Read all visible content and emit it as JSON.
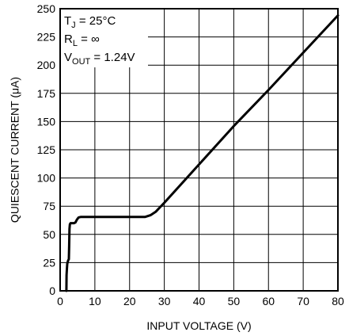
{
  "chart_data": {
    "type": "line",
    "xlabel": "INPUT VOLTAGE (V)",
    "ylabel": "QUIESCENT CURRENT (μA)",
    "xlim": [
      0,
      80
    ],
    "ylim": [
      0,
      250
    ],
    "xticks": [
      0,
      10,
      20,
      30,
      40,
      50,
      60,
      70,
      80
    ],
    "yticks": [
      0,
      25,
      50,
      75,
      100,
      125,
      150,
      175,
      200,
      225,
      250
    ],
    "grid": true,
    "annotations": {
      "line1": {
        "main": "T",
        "sub": "J",
        "rest": " = 25°C"
      },
      "line2": {
        "main": "R",
        "sub": "L",
        "rest": " = ∞"
      },
      "line3": {
        "main": "V",
        "sub": "OUT",
        "rest": " = 1.24V"
      }
    },
    "series": [
      {
        "points": [
          [
            1.8,
            0
          ],
          [
            1.85,
            14
          ],
          [
            1.95,
            20
          ],
          [
            2.05,
            24
          ],
          [
            2.3,
            27
          ],
          [
            2.5,
            28
          ],
          [
            2.6,
            40
          ],
          [
            2.7,
            55
          ],
          [
            2.8,
            59
          ],
          [
            3.0,
            60
          ],
          [
            4.0,
            60
          ],
          [
            4.4,
            60.5
          ],
          [
            4.8,
            63
          ],
          [
            5.3,
            65
          ],
          [
            6.0,
            65.5
          ],
          [
            10,
            65.5
          ],
          [
            20,
            65.5
          ],
          [
            24.5,
            65.5
          ],
          [
            26,
            67
          ],
          [
            27.5,
            70
          ],
          [
            30,
            78
          ],
          [
            40,
            112
          ],
          [
            50,
            146
          ],
          [
            60,
            178
          ],
          [
            70,
            211
          ],
          [
            80,
            244
          ]
        ]
      }
    ]
  }
}
